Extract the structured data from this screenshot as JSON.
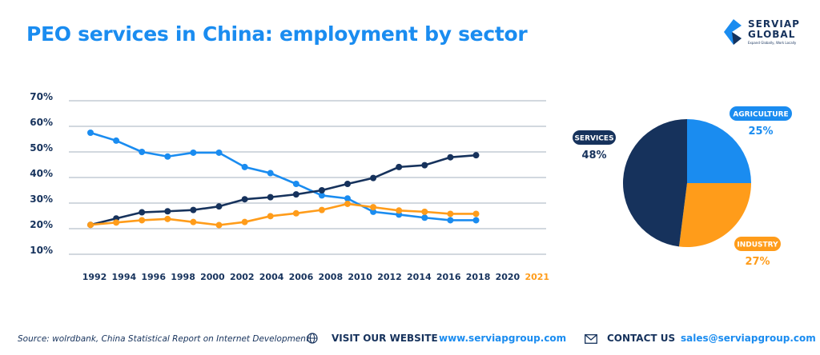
{
  "title": "PEO services in China: employment by sector",
  "logo": {
    "line1": "SERVIAP",
    "line2": "GLOBAL",
    "tagline": "Expand Globally, Work Locally"
  },
  "colors": {
    "services": "#16325c",
    "agriculture": "#1a8cf0",
    "industry": "#ff9c1a",
    "grid": "#b8c0cc"
  },
  "chart_data": [
    {
      "type": "line",
      "categories": [
        "1992",
        "1994",
        "1996",
        "1998",
        "2000",
        "2002",
        "2004",
        "2006",
        "2008",
        "2010",
        "2012",
        "2014",
        "2016",
        "2018",
        "2020",
        "2021"
      ],
      "highlight_category": "2021",
      "ylim": [
        10,
        70
      ],
      "yticks": [
        "10%",
        "20%",
        "30%",
        "40%",
        "50%",
        "60%",
        "70%"
      ],
      "grid": true,
      "series": [
        {
          "key": "agriculture",
          "values": [
            57.5,
            54.4,
            50,
            48.2,
            49.7,
            49.7,
            44.1,
            41.7,
            37.5,
            33,
            31.8,
            26.6,
            25.5,
            24.3,
            23.3,
            23.3
          ]
        },
        {
          "key": "services",
          "values": [
            21.5,
            24,
            26.4,
            26.8,
            27.3,
            28.7,
            31.5,
            32.3,
            33.4,
            35,
            37.5,
            39.8,
            44.1,
            44.8,
            47.9,
            48.7
          ]
        },
        {
          "key": "industry",
          "values": [
            21.5,
            22.4,
            23.3,
            23.8,
            22.6,
            21.4,
            22.6,
            24.9,
            26,
            27.3,
            29.7,
            28.4,
            27.1,
            26.6,
            25.8,
            25.8
          ]
        }
      ]
    },
    {
      "type": "pie",
      "slices": [
        {
          "key": "agriculture",
          "label": "AGRICULTURE",
          "value": 25,
          "value_label": "25%"
        },
        {
          "key": "industry",
          "label": "INDUSTRY",
          "value": 27,
          "value_label": "27%"
        },
        {
          "key": "services",
          "label": "SERVICES",
          "value": 48,
          "value_label": "48%"
        }
      ]
    }
  ],
  "footer": {
    "source": "Source: wolrdbank, China Statistical Report on Internet Development.",
    "visit_label": "VISIT OUR WEBSITE",
    "website": "www.serviapgroup.com",
    "contact_label": "CONTACT US",
    "email": "sales@serviapgroup.com"
  }
}
